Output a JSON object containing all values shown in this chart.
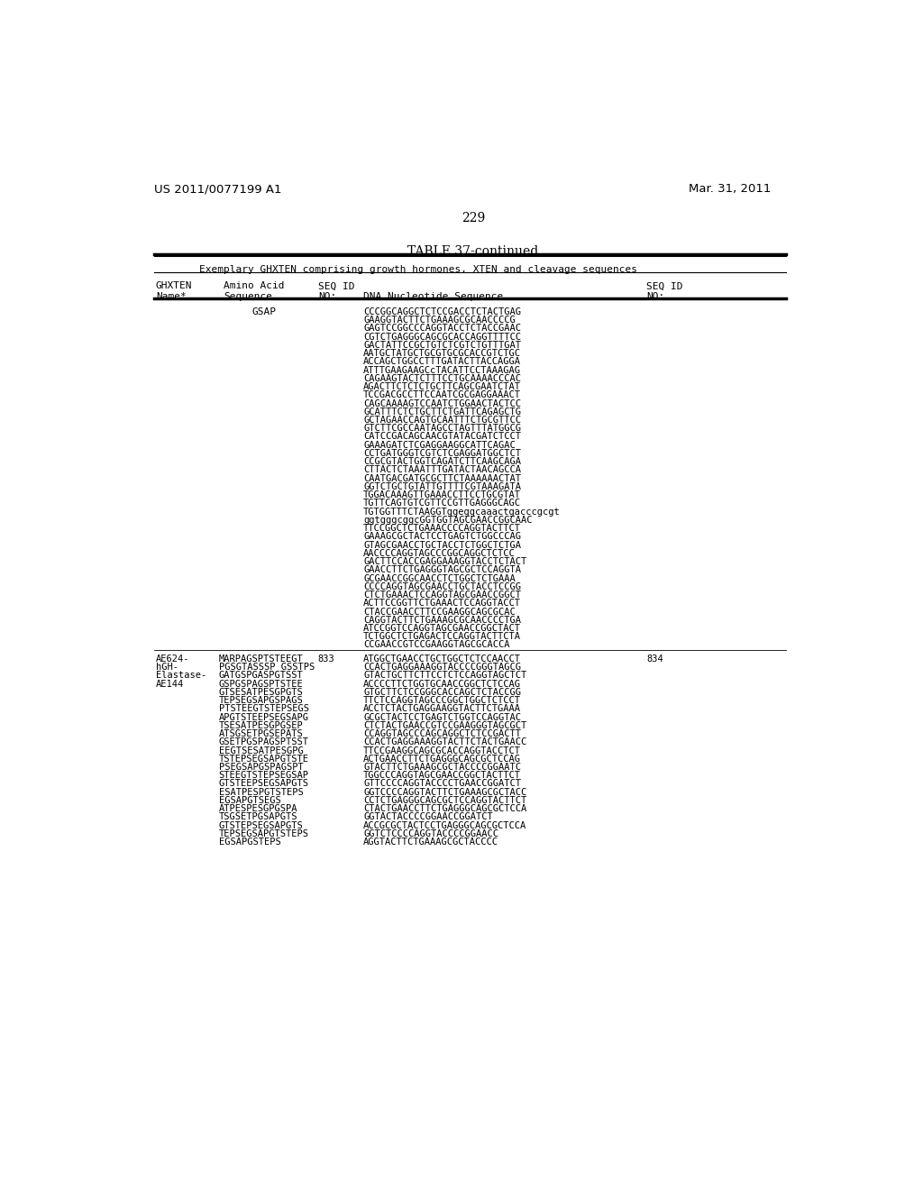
{
  "header_left": "US 2011/0077199 A1",
  "header_right": "Mar. 31, 2011",
  "page_number": "229",
  "table_title": "TABLE 37-continued",
  "table_subtitle": "Exemplary GHXTEN comprising growth hormones, XTEN and cleavage sequences",
  "background_color": "#ffffff",
  "gsap_dna_lines": [
    "CCCGGCAGGCTCTCCGACCTCTACTGAG",
    "GAAGGTACTTCTGAAAGCGCAACCCCG",
    "GAGTCCGGCCCAGGTACCTCTACCGAAC",
    "CGTCTGAGGGCAGCGCACCAGGTTTTCC",
    "GACTATTCCGCTGTCTCGTCTGTTTGAT",
    "AATGCTATGCTGCGTGCGCACCGTCTGC",
    "ACCAGCTGGCCTTTGATACTTACCAGGA",
    "ATTTGAAGAAGCcTACATTCCTAAAGAG",
    "CAGAAGTACTCTTTCCTGCAAAACCCAC",
    "AGACTTCTCTCTGCTTCAGCGAATCTAT",
    "TCCGACGCCTTCCAATCGCGAGGAAACT",
    "CAGCAAAAGTCCAATCTGGAACTACTCC",
    "GCATTTCTCTGCTTCTGATTCAGAGCTG",
    "GCTAGAACCAGTGCAATTTCTGCGTTCC",
    "GTCTTCGCCAATAGCCTAGTTTATGGCG",
    "CATCCGACAGCAACGTATACGATCTCCT",
    "GAAAGATCTCGAGGAAGGCATTCAGAC",
    "CCTGATGGGTCGTCTCGAGGATGGCTCT",
    "CCGCGTACTGGTCAGATCTTCAAGCAGA",
    "CTTACTCTAAATTTGATACTAACAGCCA",
    "CAATGACGATGCGCTTCTAAAAAACTAT",
    "GGTCTGCTGTATTGTTTTCGTAAAGATA",
    "TGGACAAAGTTGAAACCTTCCTGCGTAT",
    "TGTTCAGTGTCGTTCCGTTGAGGGCAGC",
    "TGTGGTTTCTAAGGTggeggcaaactgacccgcgt",
    "ggtgggcggcGGTGGTAGCGAACCGGCAAC",
    "TTCCGGCTCTGAAACCCCAGGTACTTCT",
    "GAAAGCGCTACTCCTGAGTCTGGCCCAG",
    "GTAGCGAACCTGCTACCTCTGGCTCTGA",
    "AACCCCAGGTAGCCCGGCAGGCTCTCC",
    "GACTTCCACCGAGGAAAGGTACCTCTACT",
    "GAACCTTCTGAGGGTAGCGCTCCAGGTA",
    "GCGAACCGGCAACCTCTGGCTCTGAAA",
    "CCCCAGGTAGCGAACCTGCTACCTCCGG",
    "CTCTGAAACTCCAGGTAGCGAACCGGCT",
    "ACTTCCGGTTCTGAAACTCCAGGTACCT",
    "CTACCGAACCTTCCGAAGGCAGCGCAC",
    "CAGGTACTTCTGAAAGCGCAACCCCTGA",
    "ATCCGGTCCAGGTAGCGAACCGGCTACT",
    "TCTGGCTCTGAGACTCCAGGTACTTCTA",
    "CCGAACCGTCCGAAGGTAGCGCACCA"
  ],
  "ae624_ghxten_name": [
    "AE624-",
    "hGH-",
    "Elastase-",
    "AE144"
  ],
  "ae624_amino_lines": [
    "MARPAGSPTSTEEGT",
    "PGSGTASSSP GSSTPS",
    "GATGSPGASPGTSST",
    "GSPGSPAGSPTSTEE",
    "GTSESATPESGPGTS",
    "TEPSEGSAPGSPAGS",
    "PTSTEEGTSTEPSEGS",
    "APGTSTEEPSEGSAPG",
    "TSESATPESGPGSEP",
    "ATSGSETPGSEPATS",
    "GSETPGSPAGSPTSST",
    "EEGTSESATPESGPG",
    "TSTEPSEGSAPGTSTE",
    "PSEGSAPGSPAGSPT",
    "STEEGTSTEPSEGSAP",
    "GTSTEEPSEGSAPGTS",
    "ESATPESPGTSTEPS",
    "EGSAPGTSEGS",
    "ATPESPESGPGSPA",
    "TSGSETPGSAPGTS",
    "GTSTEPSEGSAPGTS",
    "TEPSEGSAPGTSTEPS",
    "EGSAPGSTEPS"
  ],
  "ae624_seq_id_aa": "833",
  "ae624_dna_lines": [
    "ATGGCTGAACCTGCTGGCTCTCCAACCT",
    "CCACTGAGGAAAGGTACCCCGGGTAGCG",
    "GTACTGCTTCTTCCTCTCCAGGTAGCTCT",
    "ACCCCTTCTGGTGCAACCGGCTCTCCAG",
    "GTGCTTCTCCGGGCACCAGCTCTACCGG",
    "TTCTCCAGGTAGCCCGGCTGGCTCTCCT",
    "ACCTCTACTGAGGAAGGTACTTCTGAAA",
    "GCGCTACTCCTGAGTCTGGTCCAGGTAC",
    "CTCTACTGAACCGTCCGAAGGGTAGCGCT",
    "CCAGGTAGCCCAGCAGGCTCTCCGACTT",
    "CCACTGAGGAAAGGTACTTCTACTGAACC",
    "TTCCGAAGGCAGCGCACCAGGTACCTCT",
    "ACTGAACCTTCTGAGGGCAGCGCTCCAG",
    "GTACTTCTGAAAGCGCTACCCCGGAATC",
    "TGGCCCAGGTAGCGAACCGGCTACTTCT",
    "GTTCCCCAGGTACCCCTGAACCGGATCT",
    "GGTCCCCAGGTACTTCTGAAAGCGCTACC",
    "CCTCTGAGGGCAGCGCTCCAGGTACTTCT",
    "CTACTGAACCTTCTGAGGGCAGCGCTCCA",
    "GGTACTACCCCGGAACCGGATCT",
    "ACCGCGCTACTCCTGAGGGCAGCGCTCCA",
    "GGTCTCCCCAGGTACCCCGGAACC",
    "AGGTACTTCTGAAAGCGCTACCCC"
  ],
  "ae624_seq_id_dna": "834"
}
